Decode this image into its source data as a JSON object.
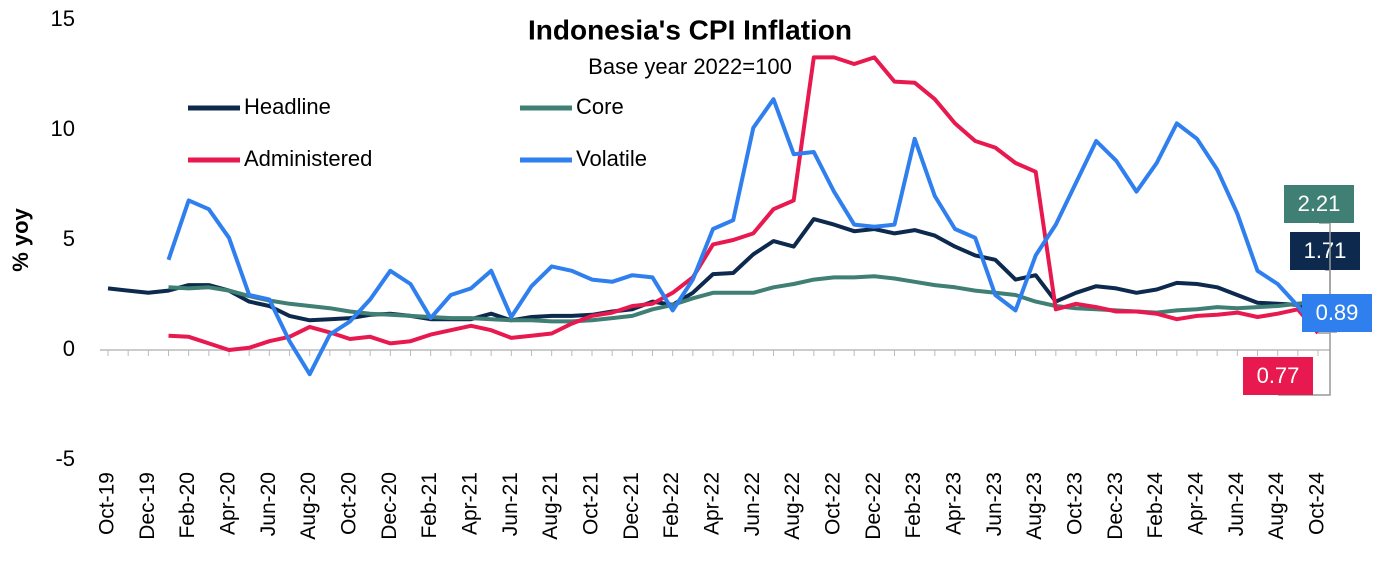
{
  "chart_data": {
    "type": "line",
    "title": "Indonesia's CPI Inflation",
    "subtitle": "Base year 2022=100",
    "y_label": "% yoy",
    "categories": [
      "Oct-19",
      null,
      "Dec-19",
      null,
      "Feb-20",
      null,
      "Apr-20",
      null,
      "Jun-20",
      null,
      "Aug-20",
      null,
      "Oct-20",
      null,
      "Dec-20",
      null,
      "Feb-21",
      null,
      "Apr-21",
      null,
      "Jun-21",
      null,
      "Aug-21",
      null,
      "Oct-21",
      null,
      "Dec-21",
      null,
      "Feb-22",
      null,
      "Apr-22",
      null,
      "Jun-22",
      null,
      "Aug-22",
      null,
      "Oct-22",
      null,
      "Dec-22",
      null,
      "Feb-23",
      null,
      "Apr-23",
      null,
      "Jun-23",
      null,
      "Aug-23",
      null,
      "Oct-23",
      null,
      "Dec-23",
      null,
      "Feb-24",
      null,
      "Apr-24",
      null,
      "Jun-24",
      null,
      "Aug-24",
      null,
      "Oct-24"
    ],
    "series": [
      {
        "name": "Headline",
        "color": "#0d2a4e",
        "values": [
          2.8,
          2.7,
          2.6,
          2.7,
          2.95,
          2.95,
          2.7,
          2.2,
          2.0,
          1.55,
          1.35,
          1.4,
          1.45,
          1.6,
          1.65,
          1.55,
          1.4,
          1.4,
          1.4,
          1.65,
          1.35,
          1.5,
          1.55,
          1.55,
          1.6,
          1.75,
          1.85,
          2.2,
          2.05,
          2.6,
          3.45,
          3.5,
          4.35,
          4.95,
          4.7,
          5.95,
          5.7,
          5.4,
          5.5,
          5.3,
          5.45,
          5.2,
          4.7,
          4.3,
          4.1,
          3.2,
          3.4,
          2.2,
          2.6,
          2.9,
          2.8,
          2.6,
          2.75,
          3.05,
          3.0,
          2.85,
          2.5,
          2.15,
          2.1,
          2.05,
          1.71
        ]
      },
      {
        "name": "Core",
        "color": "#3f7f74",
        "values": [
          null,
          null,
          null,
          2.85,
          2.8,
          2.85,
          2.7,
          2.45,
          2.25,
          2.1,
          2.0,
          1.9,
          1.75,
          1.65,
          1.6,
          1.55,
          1.5,
          1.45,
          1.45,
          1.4,
          1.35,
          1.35,
          1.3,
          1.3,
          1.35,
          1.45,
          1.55,
          1.85,
          2.05,
          2.35,
          2.6,
          2.6,
          2.6,
          2.85,
          3.0,
          3.2,
          3.3,
          3.3,
          3.35,
          3.25,
          3.1,
          2.95,
          2.85,
          2.7,
          2.6,
          2.5,
          2.2,
          2.0,
          1.9,
          1.85,
          1.8,
          1.75,
          1.7,
          1.8,
          1.85,
          1.95,
          1.9,
          1.95,
          2.0,
          2.1,
          2.21
        ]
      },
      {
        "name": "Administered",
        "color": "#e8194f",
        "values": [
          null,
          null,
          null,
          0.65,
          0.6,
          0.3,
          0.0,
          0.1,
          0.4,
          0.6,
          1.05,
          0.8,
          0.5,
          0.6,
          0.3,
          0.4,
          0.7,
          0.9,
          1.1,
          0.9,
          0.55,
          0.65,
          0.75,
          1.2,
          1.55,
          1.7,
          2.0,
          2.1,
          2.6,
          3.3,
          4.8,
          5.0,
          5.3,
          6.4,
          6.8,
          13.3,
          13.3,
          13.0,
          13.3,
          12.2,
          12.15,
          11.4,
          10.3,
          9.5,
          9.2,
          8.5,
          8.1,
          1.85,
          2.1,
          1.95,
          1.75,
          1.75,
          1.65,
          1.4,
          1.55,
          1.6,
          1.7,
          1.5,
          1.65,
          1.85,
          0.77
        ]
      },
      {
        "name": "Volatile",
        "color": "#2f7fef",
        "values": [
          null,
          null,
          null,
          4.1,
          6.8,
          6.4,
          5.1,
          2.5,
          2.3,
          0.4,
          -1.1,
          0.7,
          1.3,
          2.3,
          3.6,
          3.0,
          1.45,
          2.5,
          2.8,
          3.6,
          1.5,
          2.9,
          3.8,
          3.6,
          3.2,
          3.1,
          3.4,
          3.3,
          1.8,
          3.2,
          5.5,
          5.9,
          10.1,
          11.4,
          8.9,
          9.0,
          7.2,
          5.7,
          5.6,
          5.7,
          9.6,
          7.0,
          5.5,
          5.1,
          2.5,
          1.8,
          4.3,
          5.7,
          7.6,
          9.5,
          8.6,
          7.2,
          8.5,
          10.3,
          9.6,
          8.2,
          6.2,
          3.6,
          3.0,
          2.0,
          0.89
        ]
      }
    ],
    "ylim": [
      -5,
      15
    ],
    "yticks": [
      -5,
      0,
      5,
      10,
      15
    ],
    "grid": false
  }
}
